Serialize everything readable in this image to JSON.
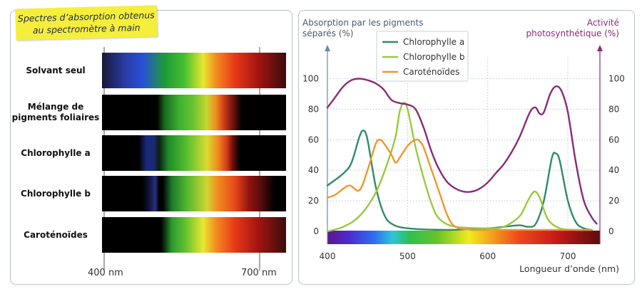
{
  "spectroscope": {
    "title_line1": "Spectres d’absorption obtenus",
    "title_line2": "au spectromètre à main",
    "rows": [
      {
        "label_lines": [
          "Solvant seul"
        ]
      },
      {
        "label_lines": [
          "Mélange de",
          "pigments foliaires"
        ]
      },
      {
        "label_lines": [
          "Chlorophylle a"
        ]
      },
      {
        "label_lines": [
          "Chlorophylle b"
        ]
      },
      {
        "label_lines": [
          "Caroténoïdes"
        ]
      }
    ],
    "scale_left": "400 nm",
    "scale_right": "700 nm"
  },
  "chart_data": {
    "type": "line",
    "ylabel_left": "Absorption par les pigments séparés (%)",
    "ylabel_left_lines": [
      "Absorption par les pigments",
      "séparés (%)"
    ],
    "ylabel_right": "Activité photosynthétique (%)",
    "ylabel_right_lines": [
      "Activité",
      "photosynthétique (%)"
    ],
    "xlabel": "Longueur d’onde (nm)",
    "xlim": [
      400,
      740
    ],
    "ylim": [
      0,
      110
    ],
    "x_ticks": [
      400,
      500,
      600,
      700
    ],
    "y_ticks": [
      0,
      20,
      40,
      60,
      80,
      100
    ],
    "grid": true,
    "legend_position": "top-center",
    "series": [
      {
        "name": "Chlorophylle a",
        "color": "#2e8b6a",
        "axis": "left",
        "points": [
          [
            400,
            30
          ],
          [
            420,
            38
          ],
          [
            430,
            45
          ],
          [
            440,
            62
          ],
          [
            445,
            66
          ],
          [
            450,
            60
          ],
          [
            460,
            30
          ],
          [
            470,
            12
          ],
          [
            480,
            5
          ],
          [
            500,
            2
          ],
          [
            550,
            1
          ],
          [
            600,
            2
          ],
          [
            620,
            3
          ],
          [
            640,
            4
          ],
          [
            650,
            3
          ],
          [
            660,
            5
          ],
          [
            670,
            20
          ],
          [
            680,
            48
          ],
          [
            685,
            51
          ],
          [
            690,
            46
          ],
          [
            700,
            20
          ],
          [
            710,
            6
          ],
          [
            720,
            2
          ],
          [
            730,
            1
          ]
        ]
      },
      {
        "name": "Chlorophylle b",
        "color": "#99c93d",
        "axis": "left",
        "points": [
          [
            400,
            0
          ],
          [
            420,
            3
          ],
          [
            440,
            10
          ],
          [
            460,
            25
          ],
          [
            475,
            45
          ],
          [
            485,
            62
          ],
          [
            490,
            78
          ],
          [
            495,
            84
          ],
          [
            500,
            80
          ],
          [
            510,
            55
          ],
          [
            520,
            35
          ],
          [
            530,
            18
          ],
          [
            540,
            8
          ],
          [
            560,
            3
          ],
          [
            600,
            2
          ],
          [
            620,
            3
          ],
          [
            640,
            10
          ],
          [
            650,
            20
          ],
          [
            658,
            26
          ],
          [
            665,
            22
          ],
          [
            675,
            8
          ],
          [
            690,
            2
          ],
          [
            710,
            1
          ],
          [
            730,
            1
          ]
        ]
      },
      {
        "name": "Caroténoïdes",
        "color": "#f0962e",
        "axis": "left",
        "points": [
          [
            400,
            22
          ],
          [
            410,
            24
          ],
          [
            420,
            28
          ],
          [
            428,
            30
          ],
          [
            440,
            27
          ],
          [
            450,
            40
          ],
          [
            460,
            57
          ],
          [
            465,
            60
          ],
          [
            470,
            58
          ],
          [
            480,
            50
          ],
          [
            485,
            45
          ],
          [
            490,
            48
          ],
          [
            500,
            56
          ],
          [
            510,
            60
          ],
          [
            515,
            59
          ],
          [
            520,
            55
          ],
          [
            530,
            40
          ],
          [
            540,
            25
          ],
          [
            550,
            10
          ],
          [
            560,
            3
          ],
          [
            580,
            1
          ],
          [
            600,
            1
          ],
          [
            650,
            1
          ],
          [
            700,
            1
          ],
          [
            730,
            1
          ]
        ]
      },
      {
        "name": "Activité photosynthétique",
        "color": "#8a2a78",
        "axis": "right",
        "points": [
          [
            400,
            81
          ],
          [
            410,
            88
          ],
          [
            420,
            95
          ],
          [
            430,
            99
          ],
          [
            440,
            100
          ],
          [
            450,
            99
          ],
          [
            460,
            97
          ],
          [
            470,
            93
          ],
          [
            480,
            86
          ],
          [
            490,
            84
          ],
          [
            500,
            83
          ],
          [
            510,
            80
          ],
          [
            520,
            68
          ],
          [
            530,
            52
          ],
          [
            540,
            40
          ],
          [
            550,
            32
          ],
          [
            560,
            28
          ],
          [
            570,
            26
          ],
          [
            580,
            26
          ],
          [
            590,
            28
          ],
          [
            600,
            32
          ],
          [
            610,
            38
          ],
          [
            620,
            44
          ],
          [
            630,
            52
          ],
          [
            640,
            62
          ],
          [
            650,
            75
          ],
          [
            655,
            80
          ],
          [
            660,
            81
          ],
          [
            665,
            77
          ],
          [
            670,
            78
          ],
          [
            678,
            90
          ],
          [
            685,
            95
          ],
          [
            692,
            92
          ],
          [
            700,
            78
          ],
          [
            710,
            45
          ],
          [
            720,
            20
          ],
          [
            730,
            9
          ],
          [
            736,
            5
          ]
        ]
      }
    ]
  }
}
